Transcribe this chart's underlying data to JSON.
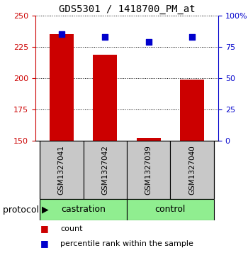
{
  "title": "GDS5301 / 1418700_PM_at",
  "samples": [
    "GSM1327041",
    "GSM1327042",
    "GSM1327039",
    "GSM1327040"
  ],
  "count_values": [
    235,
    219,
    152,
    199
  ],
  "percentile_values": [
    85,
    83,
    79,
    83
  ],
  "left_ylim": [
    150,
    250
  ],
  "right_ylim": [
    0,
    100
  ],
  "left_yticks": [
    150,
    175,
    200,
    225,
    250
  ],
  "right_yticks": [
    0,
    25,
    50,
    75,
    100
  ],
  "right_yticklabels": [
    "0",
    "25",
    "50",
    "75",
    "100%"
  ],
  "bar_color": "#CC0000",
  "dot_color": "#0000CC",
  "sample_box_color": "#C8C8C8",
  "group_box_color": "#90EE90",
  "left_axis_color": "#CC0000",
  "right_axis_color": "#0000CC",
  "bar_width": 0.55,
  "dot_size": 40,
  "castration_label": "castration",
  "control_label": "control",
  "protocol_label": "protocol",
  "legend_count": "count",
  "legend_pct": "percentile rank within the sample",
  "title_fontsize": 10,
  "tick_fontsize": 8,
  "label_fontsize": 8,
  "group_fontsize": 9
}
